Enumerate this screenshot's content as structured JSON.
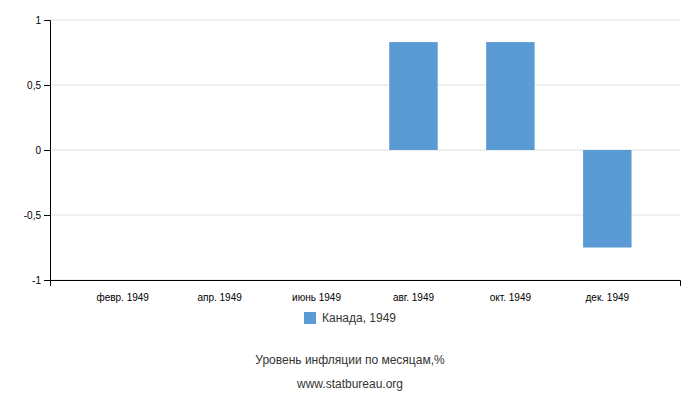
{
  "chart_data": {
    "type": "bar",
    "categories": [
      "февр. 1949",
      "апр. 1949",
      "июнь 1949",
      "авг. 1949",
      "окт. 1949",
      "дек. 1949"
    ],
    "series": [
      {
        "name": "Канада, 1949",
        "color": "#5b9bd5",
        "values": [
          0,
          0,
          0,
          0.83,
          0.83,
          -0.75
        ]
      }
    ],
    "ylim": [
      -1,
      1
    ],
    "yticks": [
      -1,
      {
        "value": -0.5,
        "label": "-0,5"
      },
      0,
      {
        "value": 0.5,
        "label": "0,5"
      },
      1
    ],
    "grid": true,
    "legend": "bottom",
    "xlabel": "Уровень инфляции по месяцам,%",
    "source": "www.statbureau.org"
  }
}
